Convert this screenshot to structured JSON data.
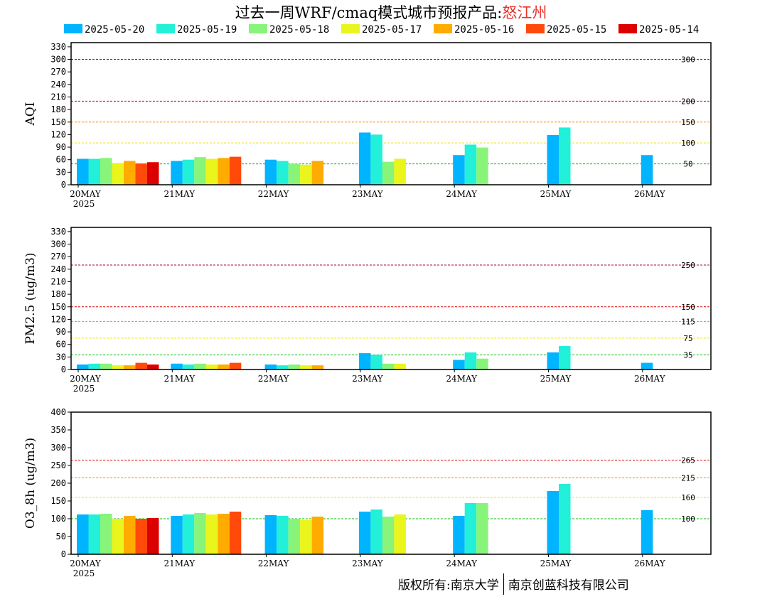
{
  "title_prefix": "过去一周WRF/cmaq模式城市预报产品:",
  "city": "怒江州",
  "legend": [
    {
      "label": "2025-05-20",
      "color": "#00b4ff"
    },
    {
      "label": "2025-05-19",
      "color": "#22f0d8"
    },
    {
      "label": "2025-05-18",
      "color": "#88f47a"
    },
    {
      "label": "2025-05-17",
      "color": "#eaf51c"
    },
    {
      "label": "2025-05-16",
      "color": "#ffab00"
    },
    {
      "label": "2025-05-15",
      "color": "#ff4a0a"
    },
    {
      "label": "2025-05-14",
      "color": "#dd0000"
    }
  ],
  "copyright_left": "版权所有:南京大学",
  "copyright_right": "南京创蓝科技有限公司",
  "chart_data": [
    {
      "type": "bar",
      "ylabel": "AQI",
      "ylim": [
        0,
        340
      ],
      "yticks": [
        0,
        30,
        60,
        90,
        120,
        150,
        180,
        210,
        240,
        270,
        300,
        330
      ],
      "categories": [
        "20MAY",
        "21MAY",
        "22MAY",
        "23MAY",
        "24MAY",
        "25MAY",
        "26MAY"
      ],
      "first_tick_sublabel": "2025",
      "thresholds": [
        {
          "value": 300,
          "label": "300",
          "color": "#aa0044"
        },
        {
          "value": 200,
          "label": "200",
          "color": "#dd0000"
        },
        {
          "value": 150,
          "label": "150",
          "color": "#ff8800"
        },
        {
          "value": 100,
          "label": "100",
          "color": "#f0e000"
        },
        {
          "value": 50,
          "label": "50",
          "color": "#00bb00"
        }
      ],
      "series": [
        {
          "name": "2025-05-20",
          "values": [
            62,
            57,
            60,
            125,
            71,
            119,
            71
          ]
        },
        {
          "name": "2025-05-19",
          "values": [
            62,
            60,
            57,
            120,
            96,
            137,
            null
          ]
        },
        {
          "name": "2025-05-18",
          "values": [
            64,
            66,
            50,
            55,
            89,
            null,
            null
          ]
        },
        {
          "name": "2025-05-17",
          "values": [
            52,
            62,
            48,
            62,
            null,
            null,
            null
          ]
        },
        {
          "name": "2025-05-16",
          "values": [
            57,
            64,
            57,
            null,
            null,
            null,
            null
          ]
        },
        {
          "name": "2025-05-15",
          "values": [
            51,
            67,
            null,
            null,
            null,
            null,
            null
          ]
        },
        {
          "name": "2025-05-14",
          "values": [
            54,
            null,
            null,
            null,
            null,
            null,
            null
          ]
        }
      ]
    },
    {
      "type": "bar",
      "ylabel": "PM2.5 (ug/m3)",
      "ylim": [
        0,
        340
      ],
      "yticks": [
        0,
        30,
        60,
        90,
        120,
        150,
        180,
        210,
        240,
        270,
        300,
        330
      ],
      "categories": [
        "20MAY",
        "21MAY",
        "22MAY",
        "23MAY",
        "24MAY",
        "25MAY",
        "26MAY"
      ],
      "first_tick_sublabel": "2025",
      "thresholds": [
        {
          "value": 250,
          "label": "250",
          "color": "#aa0044"
        },
        {
          "value": 150,
          "label": "150",
          "color": "#dd0000"
        },
        {
          "value": 115,
          "label": "115",
          "color": "#ff8800"
        },
        {
          "value": 75,
          "label": "75",
          "color": "#f0e000"
        },
        {
          "value": 35,
          "label": "35",
          "color": "#00bb00"
        }
      ],
      "series": [
        {
          "name": "2025-05-20",
          "values": [
            12,
            14,
            12,
            39,
            23,
            41,
            16
          ]
        },
        {
          "name": "2025-05-19",
          "values": [
            14,
            12,
            10,
            35,
            41,
            56,
            null
          ]
        },
        {
          "name": "2025-05-18",
          "values": [
            14,
            14,
            12,
            14,
            26,
            null,
            null
          ]
        },
        {
          "name": "2025-05-17",
          "values": [
            10,
            12,
            10,
            14,
            null,
            null,
            null
          ]
        },
        {
          "name": "2025-05-16",
          "values": [
            10,
            12,
            10,
            null,
            null,
            null,
            null
          ]
        },
        {
          "name": "2025-05-15",
          "values": [
            16,
            16,
            null,
            null,
            null,
            null,
            null
          ]
        },
        {
          "name": "2025-05-14",
          "values": [
            12,
            null,
            null,
            null,
            null,
            null,
            null
          ]
        }
      ]
    },
    {
      "type": "bar",
      "ylabel": "O3_8h (ug/m3)",
      "ylim": [
        0,
        400
      ],
      "yticks": [
        0,
        50,
        100,
        150,
        200,
        250,
        300,
        350,
        400
      ],
      "categories": [
        "20MAY",
        "21MAY",
        "22MAY",
        "23MAY",
        "24MAY",
        "25MAY",
        "26MAY"
      ],
      "first_tick_sublabel": "2025",
      "thresholds": [
        {
          "value": 265,
          "label": "265",
          "color": "#dd0000"
        },
        {
          "value": 215,
          "label": "215",
          "color": "#ff8800"
        },
        {
          "value": 160,
          "label": "160",
          "color": "#f0e000"
        },
        {
          "value": 100,
          "label": "100",
          "color": "#00bb00"
        }
      ],
      "series": [
        {
          "name": "2025-05-20",
          "values": [
            112,
            108,
            110,
            120,
            108,
            178,
            124
          ]
        },
        {
          "name": "2025-05-19",
          "values": [
            112,
            112,
            108,
            126,
            144,
            198,
            null
          ]
        },
        {
          "name": "2025-05-18",
          "values": [
            114,
            116,
            100,
            106,
            144,
            null,
            null
          ]
        },
        {
          "name": "2025-05-17",
          "values": [
            100,
            112,
            96,
            112,
            null,
            null,
            null
          ]
        },
        {
          "name": "2025-05-16",
          "values": [
            108,
            114,
            106,
            null,
            null,
            null,
            null
          ]
        },
        {
          "name": "2025-05-15",
          "values": [
            100,
            120,
            null,
            null,
            null,
            null,
            null
          ]
        },
        {
          "name": "2025-05-14",
          "values": [
            102,
            null,
            null,
            null,
            null,
            null,
            null
          ]
        }
      ]
    }
  ]
}
